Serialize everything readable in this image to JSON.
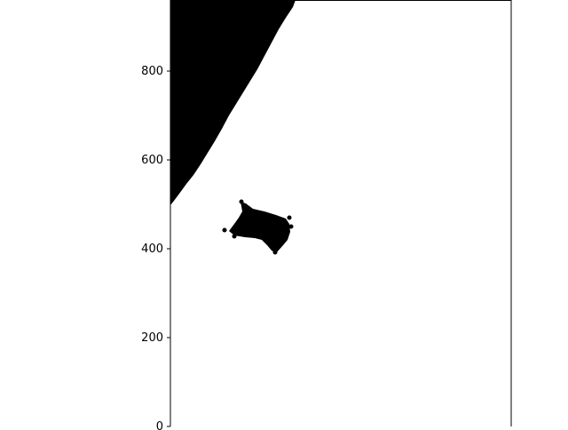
{
  "chart_data": {
    "type": "scatter",
    "title": "",
    "xlabel": "",
    "ylabel": "",
    "ylim": [
      0,
      960
    ],
    "grid": false,
    "legend": "none",
    "y_ticks": [
      {
        "value": 0,
        "label": "0"
      },
      {
        "value": 200,
        "label": "200"
      },
      {
        "value": 400,
        "label": "400"
      },
      {
        "value": 600,
        "label": "600"
      },
      {
        "value": 800,
        "label": "800"
      }
    ],
    "marker_color": "#000000",
    "regions": [
      {
        "name": "upper-left-wedge",
        "description": "dense black region filling the upper-left corner",
        "y_range": [
          500,
          960
        ]
      },
      {
        "name": "central-cluster",
        "description": "small dense black blob of points",
        "y_range": [
          395,
          505
        ]
      }
    ]
  }
}
